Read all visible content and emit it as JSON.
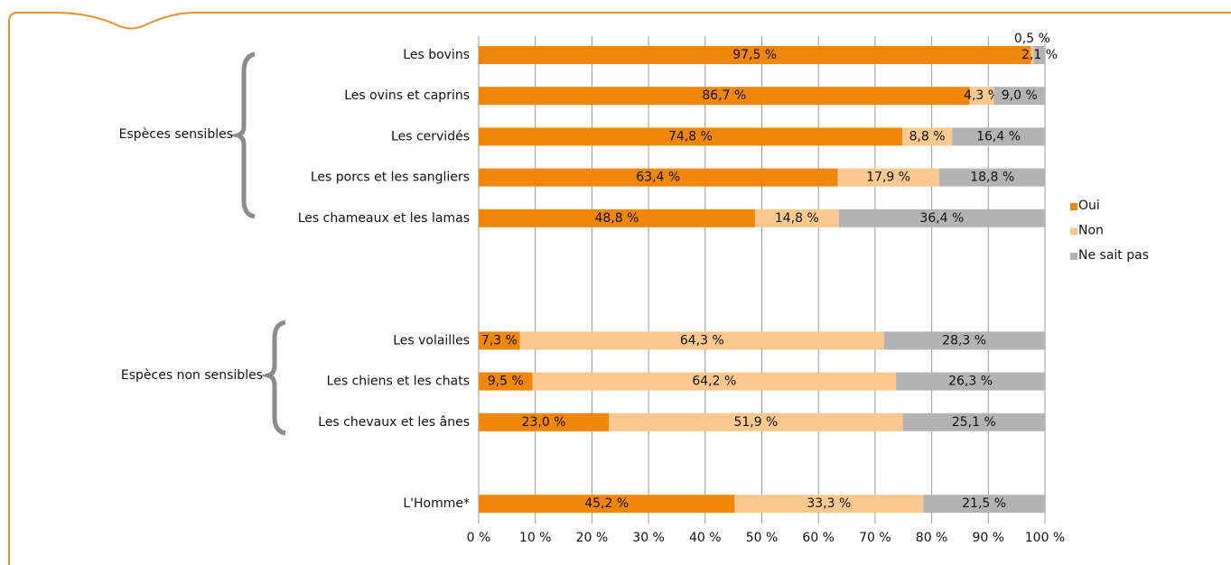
{
  "chart_data": {
    "type": "stacked-bar-horizontal",
    "group_labels": [
      "Espèces sensibles",
      "Espèces non sensibles"
    ],
    "categories": [
      "Les bovins",
      "Les ovins et caprins",
      "Les cervidés",
      "Les porcs et les sangliers",
      "Les chameaux et les lamas",
      null,
      null,
      "Les volailles",
      "Les chiens et les chats",
      "Les chevaux et les ânes",
      null,
      "L'Homme*"
    ],
    "series": [
      {
        "name": "Oui",
        "color": "#f0860a",
        "values": [
          97.5,
          86.7,
          74.8,
          63.4,
          48.8,
          null,
          null,
          7.3,
          9.5,
          23.0,
          null,
          45.2
        ],
        "value_labels": [
          "97,5 %",
          "86,7 %",
          "74,8 %",
          "63,4 %",
          "48,8 %",
          null,
          null,
          "7,3 %",
          "9,5 %",
          "23,0 %",
          null,
          "45,2 %"
        ]
      },
      {
        "name": "Non",
        "color": "#f9c88f",
        "values": [
          0.5,
          4.3,
          8.8,
          17.9,
          14.8,
          null,
          null,
          64.3,
          64.2,
          51.9,
          null,
          33.3
        ],
        "value_labels": [
          "0,5 %",
          "4,3 %",
          "8,8 %",
          "17,9 %",
          "14,8 %",
          null,
          null,
          "64,3 %",
          "64,2 %",
          "51,9 %",
          null,
          "33,3 %"
        ]
      },
      {
        "name": "Ne sait pas",
        "color": "#b3b3b3",
        "values": [
          2.1,
          9.0,
          16.4,
          18.8,
          36.4,
          null,
          null,
          28.3,
          26.3,
          25.1,
          null,
          21.5
        ],
        "value_labels": [
          "2,1 %",
          "9,0 %",
          "16,4 %",
          "18,8 %",
          "36,4 %",
          null,
          null,
          "28,3 %",
          "26,3 %",
          "25,1 %",
          null,
          "21,5 %"
        ]
      }
    ],
    "xlim": [
      0,
      100
    ],
    "xticks": [
      {
        "value": 0,
        "label": "0 %"
      },
      {
        "value": 10,
        "label": "10 %"
      },
      {
        "value": 20,
        "label": "20 %"
      },
      {
        "value": 30,
        "label": "30 %"
      },
      {
        "value": 40,
        "label": "40 %"
      },
      {
        "value": 50,
        "label": "50 %"
      },
      {
        "value": 60,
        "label": "60 %"
      },
      {
        "value": 70,
        "label": "70 %"
      },
      {
        "value": 80,
        "label": "80 %"
      },
      {
        "value": 90,
        "label": "90 %"
      },
      {
        "value": 100,
        "label": "100 %"
      }
    ],
    "grid": true,
    "legend": "right"
  }
}
